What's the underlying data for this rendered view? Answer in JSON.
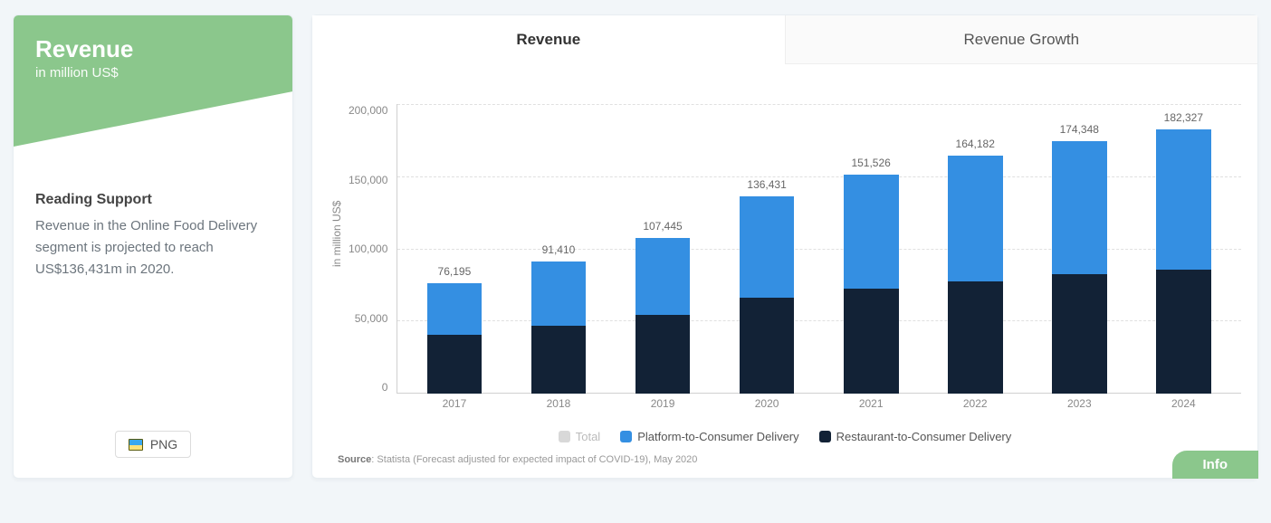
{
  "card": {
    "title": "Revenue",
    "unit": "in million US$",
    "reading_support_head": "Reading Support",
    "reading_support_text": "Revenue in the Online Food Delivery segment is projected to reach US$136,431m in 2020.",
    "png_label": "PNG",
    "accent_color": "#8bc78c"
  },
  "tabs": {
    "active": "Revenue",
    "inactive": "Revenue Growth"
  },
  "chart": {
    "type": "bar",
    "y_axis_label": "in million US$",
    "ylim": [
      0,
      200000
    ],
    "ytick_step": 50000,
    "yticks": [
      "200,000",
      "150,000",
      "100,000",
      "50,000",
      "0"
    ],
    "background_color": "#ffffff",
    "grid_color": "#e0e0e0",
    "bar_width_pct": 66,
    "categories": [
      "2017",
      "2018",
      "2019",
      "2020",
      "2021",
      "2022",
      "2023",
      "2024"
    ],
    "totals_labels": [
      "76,195",
      "91,410",
      "107,445",
      "136,431",
      "151,526",
      "164,182",
      "174,348",
      "182,327"
    ],
    "totals": [
      76195,
      91410,
      107445,
      136431,
      151526,
      164182,
      174348,
      182327
    ],
    "series": [
      {
        "name": "Platform-to-Consumer Delivery",
        "color": "#348fe2",
        "values": [
          35500,
          44500,
          53000,
          70000,
          79000,
          86500,
          92000,
          96500
        ]
      },
      {
        "name": "Restaurant-to-Consumer Delivery",
        "color": "#122236",
        "values": [
          40695,
          46910,
          54445,
          66431,
          72526,
          77682,
          82348,
          85827
        ]
      }
    ],
    "legend_extra": {
      "label": "Total",
      "color": "#d8d8d8",
      "dim": true
    }
  },
  "source": {
    "label": "Source",
    "text": "Statista (Forecast adjusted for expected impact of COVID-19), May 2020"
  },
  "info_button": "Info"
}
